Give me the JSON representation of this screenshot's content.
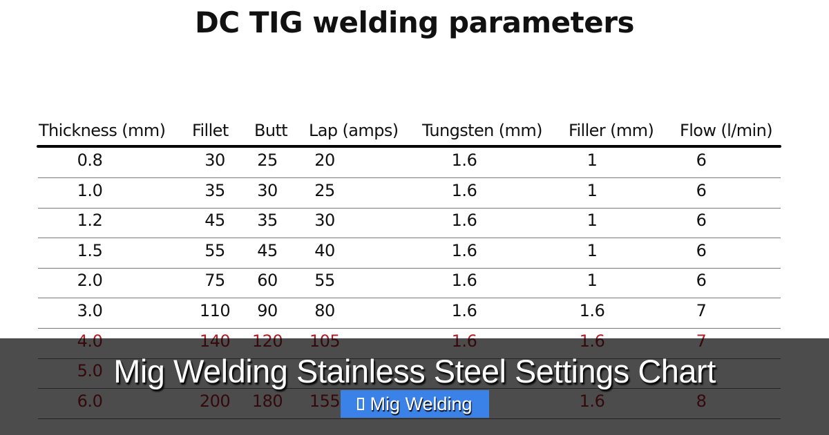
{
  "title": "DC TIG welding parameters",
  "table": {
    "headers": [
      "Thickness (mm)",
      "Fillet",
      "Butt",
      "Lap (amps)",
      "Tungsten (mm)",
      "Filler (mm)",
      "Flow (l/min)"
    ],
    "rows": [
      [
        "0.8",
        "30",
        "25",
        "20",
        "1.6",
        "1",
        "6"
      ],
      [
        "1.0",
        "35",
        "30",
        "25",
        "1.6",
        "1",
        "6"
      ],
      [
        "1.2",
        "45",
        "35",
        "30",
        "1.6",
        "1",
        "6"
      ],
      [
        "1.5",
        "55",
        "45",
        "40",
        "1.6",
        "1",
        "6"
      ],
      [
        "2.0",
        "75",
        "60",
        "55",
        "1.6",
        "1",
        "6"
      ],
      [
        "3.0",
        "110",
        "90",
        "80",
        "1.6",
        "1.6",
        "7"
      ],
      [
        "4.0",
        "140",
        "120",
        "105",
        "1.6",
        "1.6",
        "7"
      ],
      [
        "5.0",
        "",
        "",
        "",
        "",
        "",
        ""
      ],
      [
        "6.0",
        "200",
        "180",
        "155",
        "",
        "1.6",
        "8"
      ]
    ],
    "highlight_color": "#b0202a"
  },
  "overlay": {
    "caption": "Mig Welding Stainless Steel Settings Chart",
    "badge_label": "Mig Welding",
    "badge_icon": "folder-icon",
    "badge_color": "#3b82e8"
  }
}
